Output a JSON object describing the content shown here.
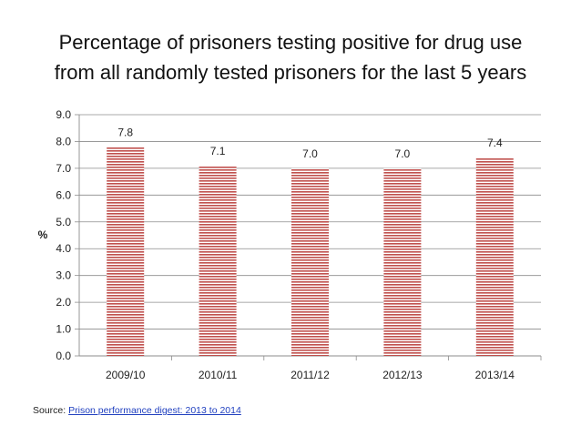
{
  "chart_data": {
    "type": "bar",
    "title_lines": [
      "Percentage of prisoners testing positive for drug use",
      "from all randomly tested prisoners for the last 5 years"
    ],
    "categories": [
      "2009/10",
      "2010/11",
      "2011/12",
      "2012/13",
      "2013/14"
    ],
    "values": [
      7.8,
      7.1,
      7.0,
      7.0,
      7.4
    ],
    "data_labels": [
      "7.8",
      "7.1",
      "7.0",
      "7.0",
      "7.4"
    ],
    "ylabel": "%",
    "ylim": [
      0,
      9
    ],
    "y_ticks": [
      "0.0",
      "1.0",
      "2.0",
      "3.0",
      "4.0",
      "5.0",
      "6.0",
      "7.0",
      "8.0",
      "9.0"
    ],
    "grid": true,
    "legend": "none",
    "bar_color": "#c0504d"
  },
  "source": {
    "prefix": "Source: ",
    "link_text": "Prison performance digest: 2013 to 2014"
  }
}
